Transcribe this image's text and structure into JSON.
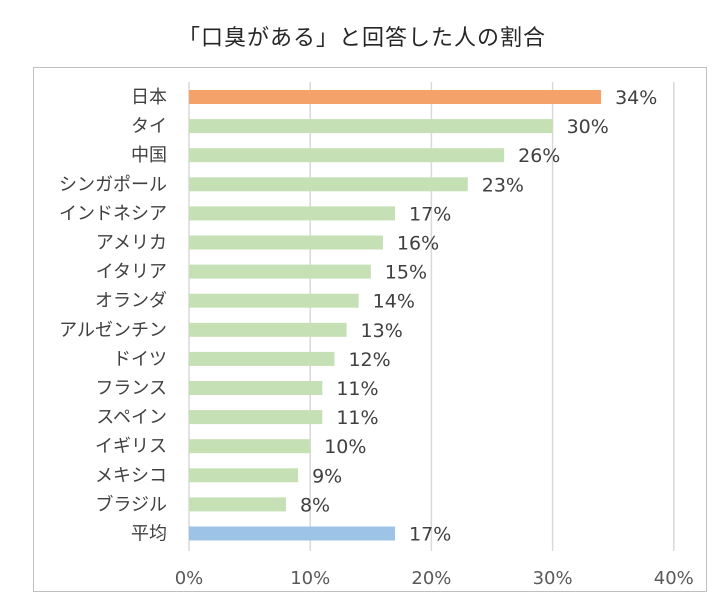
{
  "chart_data": {
    "type": "bar",
    "orientation": "horizontal",
    "title": "「口臭がある」と回答した人の割合",
    "categories": [
      "日本",
      "タイ",
      "中国",
      "シンガポール",
      "インドネシア",
      "アメリカ",
      "イタリア",
      "オランダ",
      "アルゼンチン",
      "ドイツ",
      "フランス",
      "スペイン",
      "イギリス",
      "メキシコ",
      "ブラジル",
      "平均"
    ],
    "values": [
      34,
      30,
      26,
      23,
      17,
      16,
      15,
      14,
      13,
      12,
      11,
      11,
      10,
      9,
      8,
      17
    ],
    "value_labels": [
      "34%",
      "30%",
      "26%",
      "23%",
      "17%",
      "16%",
      "15%",
      "14%",
      "13%",
      "12%",
      "11%",
      "11%",
      "10%",
      "9%",
      "8%",
      "17%"
    ],
    "bar_colors": [
      "#f4a269",
      "#c5e0b4",
      "#c5e0b4",
      "#c5e0b4",
      "#c5e0b4",
      "#c5e0b4",
      "#c5e0b4",
      "#c5e0b4",
      "#c5e0b4",
      "#c5e0b4",
      "#c5e0b4",
      "#c5e0b4",
      "#c5e0b4",
      "#c5e0b4",
      "#c5e0b4",
      "#9dc3e6"
    ],
    "xlim": [
      0,
      40
    ],
    "xticks": [
      0,
      10,
      20,
      30,
      40
    ],
    "xtick_labels": [
      "0%",
      "10%",
      "20%",
      "30%",
      "40%"
    ],
    "xlabel": "",
    "ylabel": "",
    "grid": "vertical",
    "legend": "none"
  }
}
